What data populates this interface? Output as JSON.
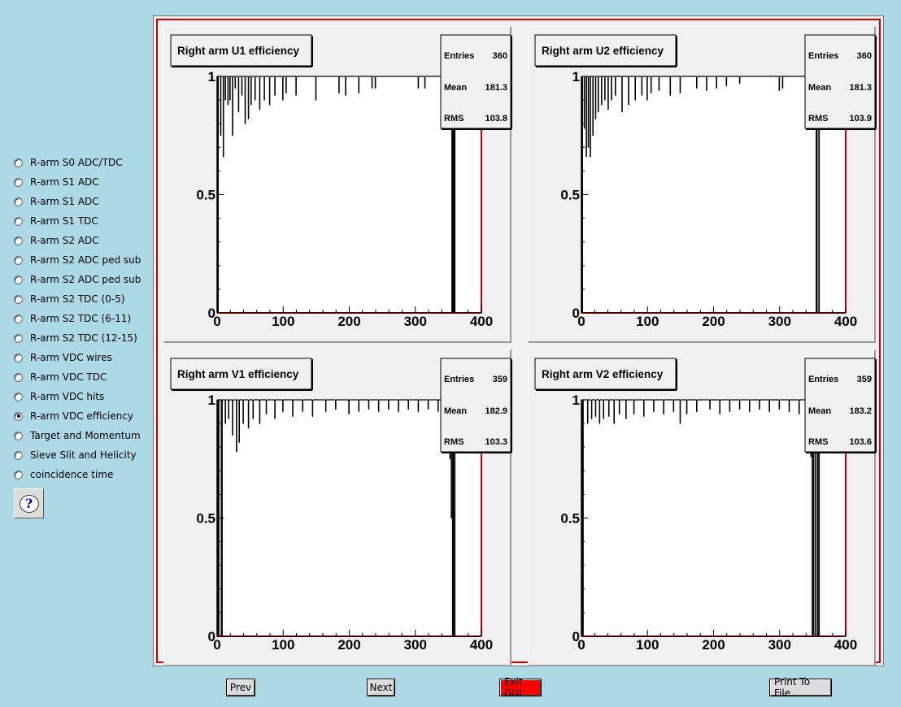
{
  "sidebar": {
    "items": [
      {
        "label": "R-arm S0 ADC/TDC",
        "checked": false
      },
      {
        "label": "R-arm S1 ADC",
        "checked": false
      },
      {
        "label": "R-arm S1 ADC",
        "checked": false
      },
      {
        "label": "R-arm S1 TDC",
        "checked": false
      },
      {
        "label": "R-arm S2 ADC",
        "checked": false
      },
      {
        "label": "R-arm S2 ADC ped sub",
        "checked": false
      },
      {
        "label": "R-arm S2 ADC ped sub",
        "checked": false
      },
      {
        "label": "R-arm S2 TDC (0-5)",
        "checked": false
      },
      {
        "label": "R-arm S2 TDC (6-11)",
        "checked": false
      },
      {
        "label": "R-arm S2 TDC (12-15)",
        "checked": false
      },
      {
        "label": "R-arm VDC wires",
        "checked": false
      },
      {
        "label": "R-arm VDC TDC",
        "checked": false
      },
      {
        "label": "R-arm VDC hits",
        "checked": false
      },
      {
        "label": "R-arm VDC efficiency",
        "checked": true
      },
      {
        "label": "Target and Momentum",
        "checked": false
      },
      {
        "label": "Sieve Slit and Helicity",
        "checked": false
      },
      {
        "label": "coincidence time",
        "checked": false
      }
    ],
    "help_icon": "question-bubble-icon",
    "help_glyph": "?"
  },
  "buttons": {
    "prev": "Prev",
    "next": "Next",
    "exit": "Exit GUI",
    "print": "Print To File"
  },
  "colors": {
    "background": "#add8e6",
    "frame_red": "#cc0000",
    "exit_button": "#ff0000"
  },
  "stat_labels": {
    "entries": "Entries",
    "mean": "Mean",
    "rms": "RMS"
  },
  "chart_data": [
    {
      "type": "bar",
      "title": "Right arm U1 efficiency",
      "xlim": [
        0,
        400
      ],
      "ylim": [
        0,
        1
      ],
      "xticks": [
        "0",
        "100",
        "200",
        "300",
        "400"
      ],
      "yticks": [
        "0",
        "0.5",
        "1"
      ],
      "stats": {
        "entries": "360",
        "mean": "181.3",
        "rms": "103.8"
      },
      "x_range_filled": [
        1,
        360
      ],
      "baseline": 1.0,
      "dips": [
        [
          2,
          0
        ],
        [
          6,
          0.75
        ],
        [
          10,
          0.66
        ],
        [
          13,
          0.9
        ],
        [
          17,
          0.88
        ],
        [
          20,
          0.9
        ],
        [
          24,
          0.75
        ],
        [
          28,
          0.95
        ],
        [
          33,
          0.85
        ],
        [
          38,
          0.92
        ],
        [
          43,
          0.8
        ],
        [
          48,
          0.82
        ],
        [
          52,
          0.88
        ],
        [
          58,
          0.9
        ],
        [
          65,
          0.86
        ],
        [
          72,
          0.9
        ],
        [
          80,
          0.88
        ],
        [
          88,
          0.92
        ],
        [
          100,
          0.9
        ],
        [
          105,
          0.93
        ],
        [
          120,
          0.92
        ],
        [
          150,
          0.9
        ],
        [
          185,
          0.93
        ],
        [
          195,
          0.92
        ],
        [
          215,
          0.93
        ],
        [
          235,
          0.95
        ],
        [
          240,
          0.95
        ],
        [
          305,
          0.95
        ],
        [
          315,
          0.95
        ],
        [
          355,
          0.94
        ],
        [
          356,
          0
        ],
        [
          357,
          0
        ],
        [
          358,
          0
        ],
        [
          359,
          0
        ],
        [
          360,
          0
        ]
      ]
    },
    {
      "type": "bar",
      "title": "Right arm U2 efficiency",
      "xlim": [
        0,
        400
      ],
      "ylim": [
        0,
        1
      ],
      "xticks": [
        "0",
        "100",
        "200",
        "300",
        "400"
      ],
      "yticks": [
        "0",
        "0.5",
        "1"
      ],
      "stats": {
        "entries": "360",
        "mean": "181.3",
        "rms": "103.9"
      },
      "x_range_filled": [
        1,
        360
      ],
      "baseline": 1.0,
      "dips": [
        [
          2,
          0
        ],
        [
          5,
          0.78
        ],
        [
          8,
          0.66
        ],
        [
          11,
          0.7
        ],
        [
          14,
          0.66
        ],
        [
          18,
          0.75
        ],
        [
          22,
          0.82
        ],
        [
          26,
          0.85
        ],
        [
          31,
          0.88
        ],
        [
          36,
          0.9
        ],
        [
          41,
          0.86
        ],
        [
          46,
          0.9
        ],
        [
          52,
          0.92
        ],
        [
          62,
          0.85
        ],
        [
          72,
          0.88
        ],
        [
          82,
          0.9
        ],
        [
          92,
          0.92
        ],
        [
          100,
          0.9
        ],
        [
          106,
          0.93
        ],
        [
          118,
          0.94
        ],
        [
          135,
          0.92
        ],
        [
          150,
          0.93
        ],
        [
          175,
          0.95
        ],
        [
          190,
          0.94
        ],
        [
          205,
          0.95
        ],
        [
          220,
          0.96
        ],
        [
          240,
          0.97
        ],
        [
          300,
          0.94
        ],
        [
          305,
          0.95
        ],
        [
          355,
          0.9
        ],
        [
          356,
          0
        ],
        [
          357,
          0
        ],
        [
          360,
          0
        ]
      ]
    },
    {
      "type": "bar",
      "title": "Right arm V1 efficiency",
      "xlim": [
        0,
        400
      ],
      "ylim": [
        0,
        1
      ],
      "xticks": [
        "0",
        "100",
        "200",
        "300",
        "400"
      ],
      "yticks": [
        "0",
        "0.5",
        "1"
      ],
      "stats": {
        "entries": "359",
        "mean": "182.9",
        "rms": "103.3"
      },
      "x_range_filled": [
        1,
        360
      ],
      "baseline": 1.0,
      "dips": [
        [
          2,
          0
        ],
        [
          3,
          0
        ],
        [
          7,
          0
        ],
        [
          8,
          0
        ],
        [
          13,
          0.9
        ],
        [
          18,
          0.92
        ],
        [
          24,
          0.85
        ],
        [
          30,
          0.78
        ],
        [
          34,
          0.82
        ],
        [
          40,
          0.9
        ],
        [
          48,
          0.88
        ],
        [
          55,
          0.92
        ],
        [
          65,
          0.9
        ],
        [
          75,
          0.94
        ],
        [
          88,
          0.92
        ],
        [
          100,
          0.95
        ],
        [
          115,
          0.93
        ],
        [
          130,
          0.95
        ],
        [
          145,
          0.93
        ],
        [
          165,
          0.95
        ],
        [
          180,
          0.96
        ],
        [
          200,
          0.94
        ],
        [
          215,
          0.95
        ],
        [
          230,
          0.96
        ],
        [
          245,
          0.95
        ],
        [
          260,
          0.96
        ],
        [
          275,
          0.95
        ],
        [
          290,
          0.96
        ],
        [
          305,
          0.95
        ],
        [
          320,
          0.96
        ],
        [
          335,
          0.95
        ],
        [
          350,
          0.8
        ],
        [
          353,
          0.75
        ],
        [
          355,
          0.5
        ],
        [
          357,
          0
        ],
        [
          358,
          0
        ],
        [
          360,
          0
        ]
      ]
    },
    {
      "type": "bar",
      "title": "Right arm V2 efficiency",
      "xlim": [
        0,
        400
      ],
      "ylim": [
        0,
        1
      ],
      "xticks": [
        "0",
        "100",
        "200",
        "300",
        "400"
      ],
      "yticks": [
        "0",
        "0.5",
        "1"
      ],
      "stats": {
        "entries": "359",
        "mean": "183.2",
        "rms": "103.6"
      },
      "x_range_filled": [
        1,
        360
      ],
      "baseline": 1.0,
      "dips": [
        [
          2,
          0
        ],
        [
          3,
          0
        ],
        [
          10,
          0.9
        ],
        [
          16,
          0.92
        ],
        [
          22,
          0.93
        ],
        [
          28,
          0.9
        ],
        [
          34,
          0.92
        ],
        [
          42,
          0.93
        ],
        [
          50,
          0.9
        ],
        [
          58,
          0.94
        ],
        [
          68,
          0.92
        ],
        [
          80,
          0.94
        ],
        [
          95,
          0.93
        ],
        [
          110,
          0.95
        ],
        [
          125,
          0.94
        ],
        [
          140,
          0.95
        ],
        [
          150,
          0.9
        ],
        [
          160,
          0.94
        ],
        [
          175,
          0.95
        ],
        [
          195,
          0.96
        ],
        [
          210,
          0.94
        ],
        [
          225,
          0.95
        ],
        [
          240,
          0.96
        ],
        [
          255,
          0.95
        ],
        [
          270,
          0.96
        ],
        [
          285,
          0.95
        ],
        [
          300,
          0.96
        ],
        [
          315,
          0.95
        ],
        [
          330,
          0.94
        ],
        [
          340,
          0.88
        ],
        [
          345,
          0.8
        ],
        [
          348,
          0.76
        ],
        [
          350,
          0
        ],
        [
          352,
          0
        ],
        [
          355,
          0
        ],
        [
          358,
          0
        ],
        [
          360,
          0
        ]
      ]
    }
  ]
}
